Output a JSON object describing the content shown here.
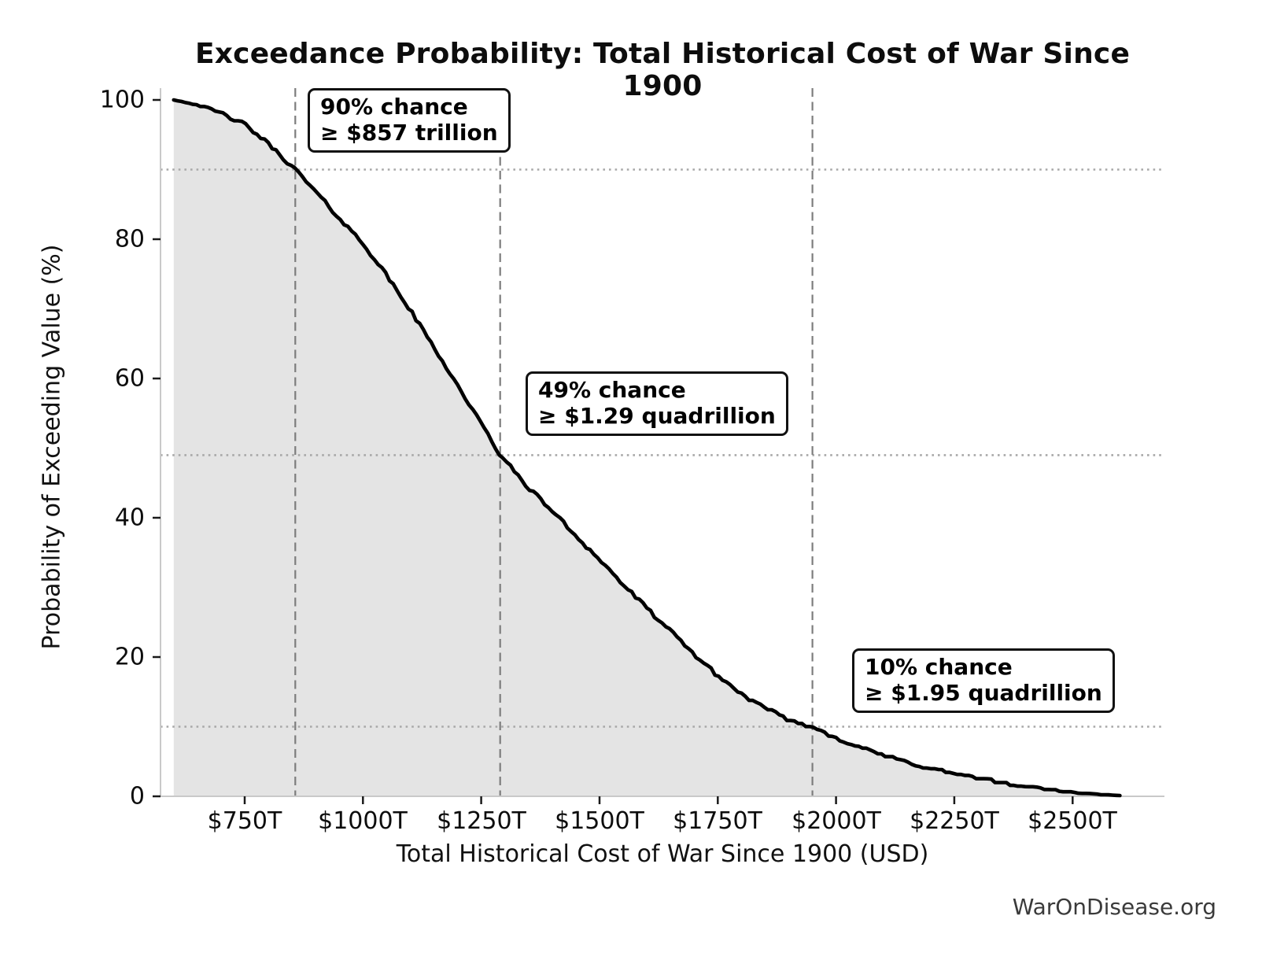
{
  "chart_data": {
    "type": "line",
    "title": "Exceedance Probability: Total Historical Cost of War Since 1900",
    "xlabel": "Total Historical Cost of War Since 1900 (USD)",
    "ylabel": "Probability of Exceeding Value (%)",
    "x_unit": "trillions of USD",
    "x": [
      600,
      650,
      700,
      750,
      800,
      857,
      900,
      950,
      1000,
      1050,
      1100,
      1150,
      1200,
      1250,
      1290,
      1350,
      1400,
      1450,
      1500,
      1550,
      1600,
      1650,
      1700,
      1750,
      1800,
      1850,
      1900,
      1950,
      2000,
      2050,
      2100,
      2150,
      2200,
      2250,
      2300,
      2350,
      2400,
      2450,
      2500,
      2550,
      2600
    ],
    "y": [
      100,
      99.3,
      98.1,
      96.5,
      93.7,
      90,
      86.8,
      83,
      79.4,
      74.8,
      69.8,
      64.5,
      59,
      53.5,
      49,
      44.3,
      41,
      37.4,
      34,
      30.4,
      27,
      23.7,
      20.4,
      17.3,
      14.7,
      12.6,
      11,
      10,
      8.4,
      7.1,
      5.9,
      4.9,
      4.0,
      3.3,
      2.6,
      2.0,
      1.5,
      1.0,
      0.55,
      0.3,
      0.1
    ],
    "xlim": [
      572,
      2694
    ],
    "ylim": [
      0,
      100
    ],
    "x_tick_values": [
      750,
      1000,
      1250,
      1500,
      1750,
      2000,
      2250,
      2500
    ],
    "x_tick_labels": [
      "$750T",
      "$1000T",
      "$1250T",
      "$1500T",
      "$1750T",
      "$2000T",
      "$2250T",
      "$2500T"
    ],
    "y_tick_values": [
      100,
      80,
      60,
      40,
      20,
      0
    ],
    "y_tick_labels": [
      "100",
      "80",
      "60",
      "40",
      "20",
      "0"
    ],
    "grid": {
      "horizontal_dotted_at_percent": [
        90,
        49,
        10
      ],
      "vertical_dashed_at_value": [
        857,
        1290,
        1950
      ],
      "legend": "none"
    },
    "annotations": [
      {
        "line1": "90% chance",
        "line2": "≥ $857 trillion",
        "percent": 90,
        "value_trillions": 857
      },
      {
        "line1": "49% chance",
        "line2": "≥ $1.29 quadrillion",
        "percent": 49,
        "value_trillions": 1290
      },
      {
        "line1": "10% chance",
        "line2": "≥ $1.95 quadrillion",
        "percent": 10,
        "value_trillions": 1950
      }
    ],
    "watermark": "WarOnDisease.org",
    "colors": {
      "curve": "#000000",
      "fill_under_curve": "#e4e4e4",
      "dashed_threshold_line": "#7d7d7d",
      "dotted_probability_line": "#a8a8a8",
      "spine": "#c9c9c9",
      "tick": "#1a1a1a",
      "background": "#ffffff",
      "watermark_text": "#3a3a3a"
    }
  }
}
